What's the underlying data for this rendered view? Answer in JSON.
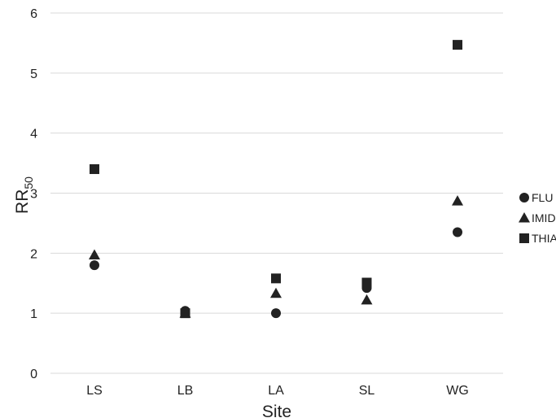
{
  "chart_data": {
    "type": "scatter",
    "title": "",
    "xlabel": "Site",
    "ylabel": {
      "main": "RR",
      "sub": "50"
    },
    "categories": [
      "LS",
      "LB",
      "LA",
      "SL",
      "WG"
    ],
    "ylim": [
      0,
      6
    ],
    "yticks": [
      "0",
      "1",
      "2",
      "3",
      "4",
      "5",
      "6"
    ],
    "grid": true,
    "legend_position": "right",
    "series": [
      {
        "name": "FLU",
        "marker": "circle",
        "color": "#222222",
        "values": [
          1.8,
          1.04,
          1.0,
          1.42,
          2.35
        ]
      },
      {
        "name": "IMID",
        "marker": "triangle",
        "color": "#222222",
        "values": [
          1.97,
          1.0,
          1.33,
          1.22,
          2.87
        ]
      },
      {
        "name": "THIA",
        "marker": "square",
        "color": "#222222",
        "values": [
          3.4,
          1.0,
          1.58,
          1.51,
          5.47
        ]
      }
    ]
  }
}
